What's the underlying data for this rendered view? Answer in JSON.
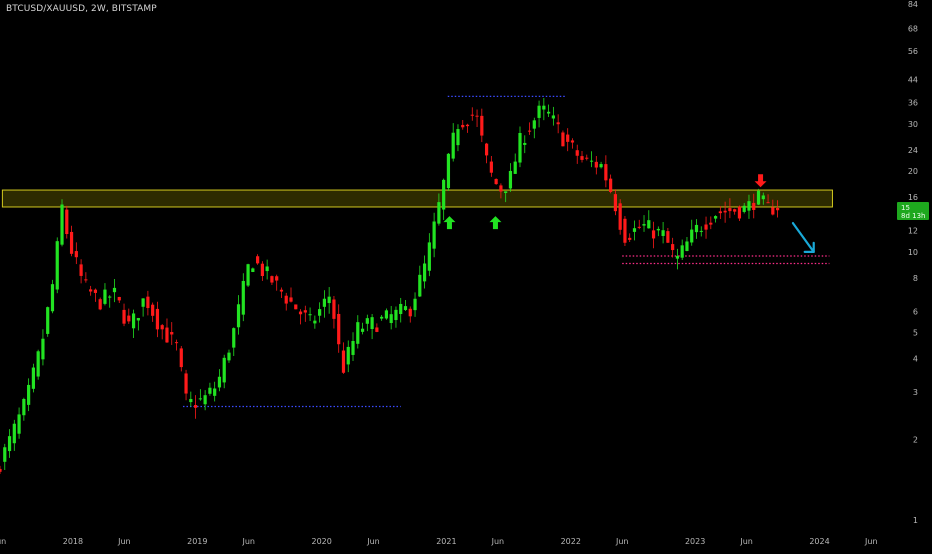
{
  "chart_title": "BTCUSD/XAUUSD, 2W, BITSTAMP",
  "price_tag": {
    "value": "15",
    "countdown": "8d 13h"
  },
  "colors": {
    "up": "#22e322",
    "down": "#ff1a1a",
    "zone_fill": "#3c3a00",
    "zone_border": "#d2c81e",
    "dotted_blue": "#3b4bff",
    "dotted_pink": "#ff2e8a",
    "arrow_cyan": "#19a9d8"
  },
  "chart_data": {
    "type": "candlestick",
    "scale": "log",
    "y_ticks": [
      1,
      2,
      3,
      4,
      5,
      6,
      8,
      10,
      12,
      15,
      16,
      20,
      24,
      30,
      36,
      44,
      56,
      68,
      84
    ],
    "y_tick_labels": [
      "1",
      "2",
      "3",
      "4",
      "5",
      "6",
      "8",
      "10",
      "12",
      "",
      "16",
      "20",
      "24",
      "30",
      "36",
      "44",
      "56",
      "68",
      "84"
    ],
    "x_range": [
      "2017-06-01",
      "2024-07-20"
    ],
    "x_ticks": [
      {
        "date": "2017-06-01",
        "label": "Jun"
      },
      {
        "date": "2018-01-01",
        "label": "2018"
      },
      {
        "date": "2018-06-01",
        "label": "Jun"
      },
      {
        "date": "2019-01-01",
        "label": "2019"
      },
      {
        "date": "2019-06-01",
        "label": "Jun"
      },
      {
        "date": "2020-01-01",
        "label": "2020"
      },
      {
        "date": "2020-06-01",
        "label": "Jun"
      },
      {
        "date": "2021-01-01",
        "label": "2021"
      },
      {
        "date": "2021-06-01",
        "label": "Jun"
      },
      {
        "date": "2022-01-01",
        "label": "2022"
      },
      {
        "date": "2022-06-01",
        "label": "Jun"
      },
      {
        "date": "2023-01-01",
        "label": "2023"
      },
      {
        "date": "2023-06-01",
        "label": "Jun"
      },
      {
        "date": "2024-01-01",
        "label": "2024"
      },
      {
        "date": "2024-06-01",
        "label": "Jun"
      }
    ],
    "key_points": [
      [
        "2017-06-01",
        1.5
      ],
      [
        "2017-07-15",
        2.0
      ],
      [
        "2017-09-01",
        2.8
      ],
      [
        "2017-10-15",
        4.5
      ],
      [
        "2017-11-20",
        8.0
      ],
      [
        "2017-12-15",
        15.0
      ],
      [
        "2018-01-01",
        11.0
      ],
      [
        "2018-02-15",
        7.5
      ],
      [
        "2018-04-01",
        6.5
      ],
      [
        "2018-05-15",
        7.0
      ],
      [
        "2018-07-01",
        5.2
      ],
      [
        "2018-08-15",
        6.8
      ],
      [
        "2018-10-01",
        5.2
      ],
      [
        "2018-11-15",
        4.4
      ],
      [
        "2018-12-15",
        2.7
      ],
      [
        "2019-02-01",
        2.8
      ],
      [
        "2019-03-15",
        3.2
      ],
      [
        "2019-05-01",
        5.0
      ],
      [
        "2019-06-20",
        9.5
      ],
      [
        "2019-08-15",
        8.0
      ],
      [
        "2019-10-15",
        6.5
      ],
      [
        "2019-12-15",
        5.4
      ],
      [
        "2020-02-10",
        7.0
      ],
      [
        "2020-03-15",
        3.6
      ],
      [
        "2020-05-01",
        5.2
      ],
      [
        "2020-06-15",
        5.4
      ],
      [
        "2020-08-15",
        5.8
      ],
      [
        "2020-10-01",
        6.2
      ],
      [
        "2020-11-15",
        9.0
      ],
      [
        "2020-12-20",
        14.0
      ],
      [
        "2021-01-15",
        20.0
      ],
      [
        "2021-02-15",
        30.0
      ],
      [
        "2021-04-10",
        33.0
      ],
      [
        "2021-05-20",
        20.0
      ],
      [
        "2021-06-20",
        17.0
      ],
      [
        "2021-07-20",
        18.5
      ],
      [
        "2021-08-20",
        26.0
      ],
      [
        "2021-10-20",
        34.0
      ],
      [
        "2021-11-15",
        32.0
      ],
      [
        "2021-12-20",
        27.0
      ],
      [
        "2022-02-15",
        22.0
      ],
      [
        "2022-04-15",
        21.0
      ],
      [
        "2022-05-20",
        16.0
      ],
      [
        "2022-06-20",
        11.5
      ],
      [
        "2022-08-15",
        12.5
      ],
      [
        "2022-10-15",
        11.5
      ],
      [
        "2022-11-20",
        9.2
      ],
      [
        "2023-01-15",
        12.0
      ],
      [
        "2023-03-15",
        14.0
      ],
      [
        "2023-05-01",
        14.3
      ],
      [
        "2023-06-15",
        14.5
      ],
      [
        "2023-07-15",
        16.0
      ],
      [
        "2023-08-15",
        14.5
      ],
      [
        "2023-09-10",
        14.8
      ]
    ],
    "annotations": {
      "resistance_zone": {
        "from": "2017-06-08",
        "to": "2024-02-08",
        "low": 14.7,
        "high": 17.0
      },
      "dotted_lines": [
        {
          "color": "blue",
          "from": "2018-11-20",
          "to": "2020-08-20",
          "value": 2.65
        },
        {
          "color": "blue",
          "from": "2021-01-05",
          "to": "2021-12-20",
          "value": 38.0
        },
        {
          "color": "pink",
          "from": "2022-06-01",
          "to": "2024-01-30",
          "value": 9.65
        },
        {
          "color": "pink",
          "from": "2022-06-01",
          "to": "2024-01-30",
          "value": 9.05
        }
      ],
      "arrows": [
        {
          "type": "up",
          "color": "green",
          "date": "2021-01-10",
          "value": 12.8
        },
        {
          "type": "up",
          "color": "green",
          "date": "2021-05-25",
          "value": 12.8
        },
        {
          "type": "down",
          "color": "red",
          "date": "2023-07-12",
          "value": 18.5
        },
        {
          "type": "down-right",
          "color": "cyan",
          "from": [
            "2023-10-15",
            12.8
          ],
          "to": [
            "2023-12-15",
            10.0
          ]
        }
      ]
    }
  }
}
